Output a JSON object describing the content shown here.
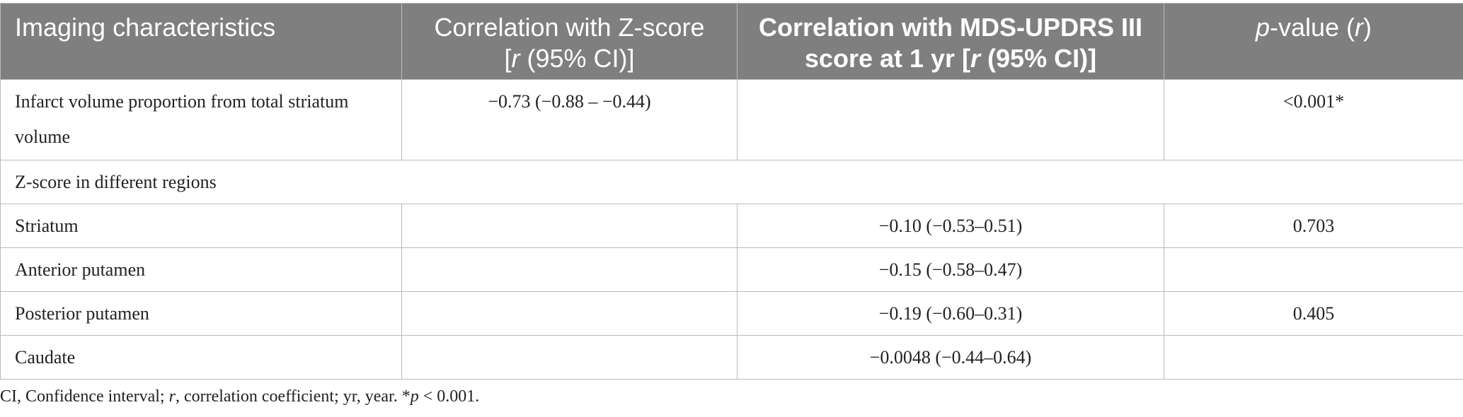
{
  "table": {
    "header": [
      [
        "Imaging characteristics"
      ],
      [
        "Correlation with Z-score",
        "[",
        "r",
        " (95% CI)]"
      ],
      [
        "Correlation with MDS-UPDRS III",
        "score at 1 yr [",
        "r",
        " (95% CI)]"
      ],
      [
        "p",
        "-value (",
        "r",
        ")"
      ]
    ],
    "rows": [
      {
        "label": "Infarct volume proportion from total striatum volume",
        "z": "−0.73 (−0.88 – −0.44)",
        "p": "<0.001*"
      },
      {
        "section": "Z-score in different regions"
      },
      {
        "label": "Striatum",
        "updrs": "−0.10 (−0.53–0.51)",
        "p": "0.703"
      },
      {
        "label": "Anterior putamen",
        "updrs": "−0.15 (−0.58–0.47)"
      },
      {
        "label": "Posterior putamen",
        "updrs": "−0.19 (−0.60–0.31)",
        "p": "0.405"
      },
      {
        "label": "Caudate",
        "updrs": "−0.0048 (−0.44–0.64)"
      }
    ]
  },
  "footnote": [
    "CI, Confidence interval; ",
    "r",
    ", correlation coefficient; yr, year. *",
    "p",
    " < 0.001."
  ]
}
